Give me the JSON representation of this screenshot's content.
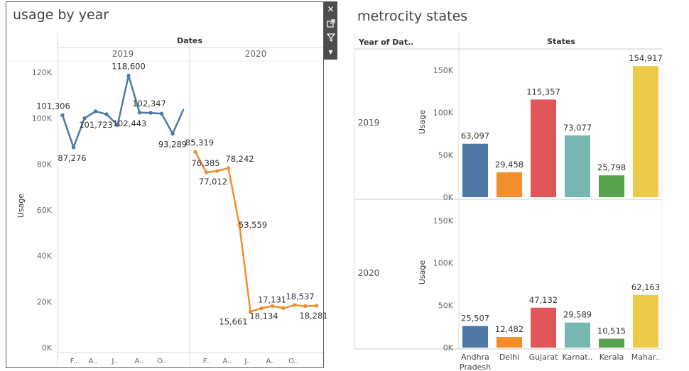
{
  "left": {
    "title": "usage by year",
    "header": "Dates",
    "years": [
      "2019",
      "2020"
    ],
    "ylabel": "Usage",
    "yticks": [
      "0K",
      "20K",
      "40K",
      "60K",
      "80K",
      "100K",
      "120K"
    ],
    "xticks_2019": [
      "F..",
      "A..",
      "J..",
      "A..",
      "O.."
    ],
    "xticks_2020": [
      "F..",
      "A..",
      "J..",
      "A..",
      "O.."
    ]
  },
  "right": {
    "title": "metrocity states",
    "row_header": "Year of Dat..",
    "col_header": "States",
    "ylabel": "Usage",
    "row_labels": [
      "2019",
      "2020"
    ],
    "yticks": [
      "0K",
      "50K",
      "100K",
      "150K"
    ],
    "states": [
      "Andhra Pradesh",
      "Delhi",
      "Gujarat",
      "Karnat..",
      "Kerala",
      "Mahar.."
    ]
  },
  "toolbar": {
    "close": "close",
    "popout": "pop-out",
    "filter": "filter",
    "more": "more"
  },
  "colors": {
    "blue": "#4e79a7",
    "orange": "#f28e2b",
    "red": "#e15759",
    "teal": "#76b7b2",
    "green": "#59a14f",
    "yellow": "#edc948"
  },
  "chart_data": [
    {
      "type": "line",
      "title": "usage by year",
      "ylabel": "Usage",
      "ylim": [
        0,
        125000
      ],
      "series": [
        {
          "name": "2019",
          "values": [
            101306,
            87276,
            100000,
            103000,
            101723,
            97000,
            118600,
            102443,
            102347,
            102000,
            93289,
            104000
          ],
          "labels": {
            "0": "101,306",
            "1": "87,276",
            "4": "101,723",
            "6": "118,600",
            "7": "102,443",
            "8": "102,347",
            "10": "93,289"
          }
        },
        {
          "name": "2020",
          "values": [
            85319,
            76385,
            77012,
            78242,
            53559,
            15661,
            17131,
            18134,
            17200,
            18537,
            18100,
            18281
          ],
          "labels": {
            "0": "85,319",
            "1": "76,385",
            "2": "77,012",
            "3": "78,242",
            "4": "53,559",
            "5": "15,661",
            "6": "17,131",
            "7": "18,134",
            "9": "18,537",
            "11": "18,281"
          }
        }
      ]
    },
    {
      "type": "bar",
      "title": "metrocity states",
      "categories": [
        "Andhra Pradesh",
        "Delhi",
        "Gujarat",
        "Karnat..",
        "Kerala",
        "Mahar.."
      ],
      "ylabel": "Usage",
      "ylim": [
        0,
        160000
      ],
      "series": [
        {
          "name": "2019",
          "values": [
            63097,
            29458,
            115357,
            73077,
            25798,
            154917
          ],
          "labels": [
            "63,097",
            "29,458",
            "115,357",
            "73,077",
            "25,798",
            "154,917"
          ]
        },
        {
          "name": "2020",
          "values": [
            25507,
            12482,
            47132,
            29589,
            10515,
            62163
          ],
          "labels": [
            "25,507",
            "12,482",
            "47,132",
            "29,589",
            "10,515",
            "62,163"
          ]
        }
      ]
    }
  ]
}
